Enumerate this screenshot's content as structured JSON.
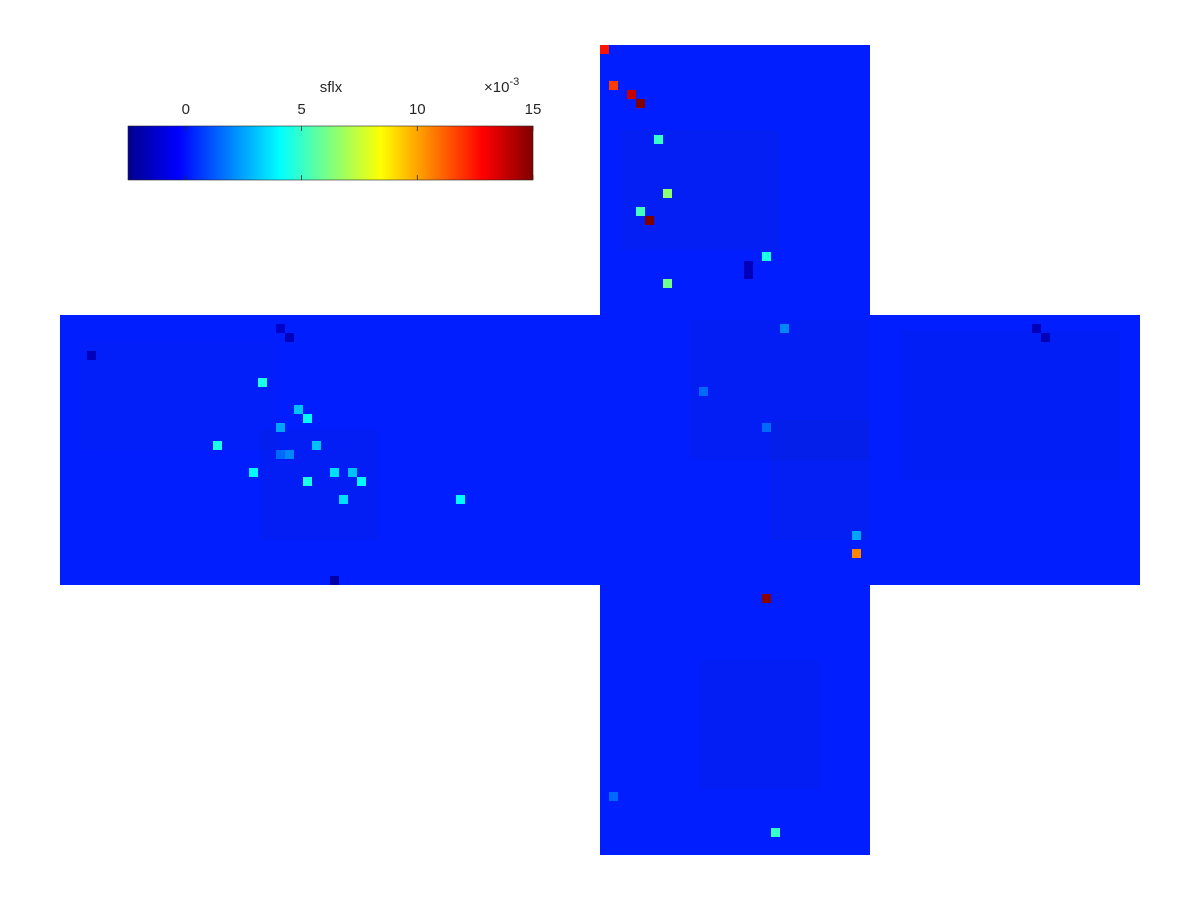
{
  "chart_data": {
    "type": "heatmap",
    "layout": "cubed-sphere-cross",
    "colormap": "jet",
    "colorbar": {
      "title": "sflx",
      "exponent_base": "×10",
      "exponent": "-3",
      "min": -2.5,
      "max": 15,
      "ticks": [
        0,
        5,
        10,
        15
      ],
      "tick_labels": [
        "0",
        "5",
        "10",
        "15"
      ],
      "placement": "top-left"
    },
    "background_value": 0.2,
    "faces": [
      "top",
      "left",
      "center-left",
      "center",
      "right",
      "bottom"
    ],
    "grid_cells": 30,
    "values_scale": "×10^-3",
    "points": [
      {
        "face": "top",
        "i": 0,
        "j": 0,
        "value": 12.5
      },
      {
        "face": "top",
        "i": 1,
        "j": 4,
        "value": 11.8
      },
      {
        "face": "top",
        "i": 3,
        "j": 5,
        "value": 13.8
      },
      {
        "face": "top",
        "i": 4,
        "j": 6,
        "value": 15.0
      },
      {
        "face": "top",
        "i": 6,
        "j": 10,
        "value": 5.0
      },
      {
        "face": "top",
        "i": 7,
        "j": 16,
        "value": 6.5
      },
      {
        "face": "top",
        "i": 4,
        "j": 18,
        "value": 5.2
      },
      {
        "face": "top",
        "i": 5,
        "j": 19,
        "value": 15.0
      },
      {
        "face": "top",
        "i": 18,
        "j": 23,
        "value": 4.5
      },
      {
        "face": "top",
        "i": 7,
        "j": 26,
        "value": 6.0
      },
      {
        "face": "center",
        "i": 20,
        "j": 1,
        "value": 2.0
      },
      {
        "face": "center",
        "i": 11,
        "j": 8,
        "value": 1.5
      },
      {
        "face": "center",
        "i": 18,
        "j": 12,
        "value": 1.5
      },
      {
        "face": "center",
        "i": 28,
        "j": 24,
        "value": 2.5
      },
      {
        "face": "center",
        "i": 28,
        "j": 26,
        "value": 10.5
      },
      {
        "face": "bottom",
        "i": 18,
        "j": 1,
        "value": 14.8
      },
      {
        "face": "bottom",
        "i": 1,
        "j": 23,
        "value": 1.5
      },
      {
        "face": "bottom",
        "i": 19,
        "j": 27,
        "value": 5.0
      },
      {
        "face": "left",
        "i": 22,
        "j": 7,
        "value": 4.5
      },
      {
        "face": "left",
        "i": 26,
        "j": 10,
        "value": 3.0
      },
      {
        "face": "left",
        "i": 27,
        "j": 11,
        "value": 4.0
      },
      {
        "face": "left",
        "i": 24,
        "j": 12,
        "value": 2.5
      },
      {
        "face": "left",
        "i": 17,
        "j": 14,
        "value": 4.5
      },
      {
        "face": "left",
        "i": 25,
        "j": 15,
        "value": 2.0
      },
      {
        "face": "left",
        "i": 28,
        "j": 14,
        "value": 3.0
      },
      {
        "face": "left",
        "i": 21,
        "j": 17,
        "value": 4.0
      },
      {
        "face": "left",
        "i": 27,
        "j": 18,
        "value": 4.5
      },
      {
        "face": "left",
        "i": 30,
        "j": 17,
        "value": 3.5
      },
      {
        "face": "left",
        "i": 32,
        "j": 17,
        "value": 3.0
      },
      {
        "face": "left",
        "i": 33,
        "j": 18,
        "value": 4.0
      },
      {
        "face": "left",
        "i": 31,
        "j": 20,
        "value": 3.5
      },
      {
        "face": "left",
        "i": 44,
        "j": 20,
        "value": 4.0
      },
      {
        "face": "left",
        "i": 24,
        "j": 15,
        "value": 1.5
      },
      {
        "face": "left",
        "i": 3,
        "j": 4,
        "value": -1.5
      },
      {
        "face": "left",
        "i": 24,
        "j": 1,
        "value": -1.2
      },
      {
        "face": "left",
        "i": 25,
        "j": 2,
        "value": -1.5
      },
      {
        "face": "left",
        "i": 30,
        "j": 29,
        "value": -1.8
      },
      {
        "face": "right",
        "i": 18,
        "j": 1,
        "value": -1.5
      },
      {
        "face": "right",
        "i": 19,
        "j": 2,
        "value": -1.5
      },
      {
        "face": "top",
        "i": 16,
        "j": 24,
        "value": -1.5
      },
      {
        "face": "top",
        "i": 16,
        "j": 25,
        "value": -1.5
      }
    ]
  }
}
